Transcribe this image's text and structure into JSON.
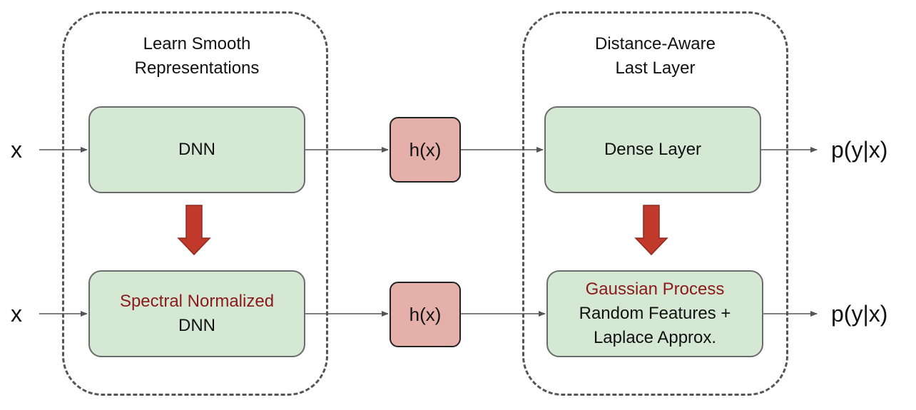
{
  "groups": {
    "left_title": "Learn Smooth\nRepresentations",
    "left_title_line1": "Learn Smooth",
    "left_title_line2": "Representations",
    "right_title_line1": "Distance-Aware",
    "right_title_line2": "Last Layer"
  },
  "inputs": {
    "top": "x",
    "bottom": "x"
  },
  "outputs": {
    "top": "p(y|x)",
    "bottom": "p(y|x)"
  },
  "boxes": {
    "dnn": "DNN",
    "sn_dnn_highlight": "Spectral Normalized",
    "sn_dnn_rest": "DNN",
    "hidden_top": "h(x)",
    "hidden_bottom": "h(x)",
    "dense": "Dense Layer",
    "gp_highlight": "Gaussian Process",
    "gp_line2": "Random Features +",
    "gp_line3": "Laplace Approx."
  },
  "colors": {
    "box_green": "#d5e8d4",
    "box_pink": "#e6b0aa",
    "highlight_text": "#8b1a1a",
    "transform_arrow": "#c0392b"
  }
}
